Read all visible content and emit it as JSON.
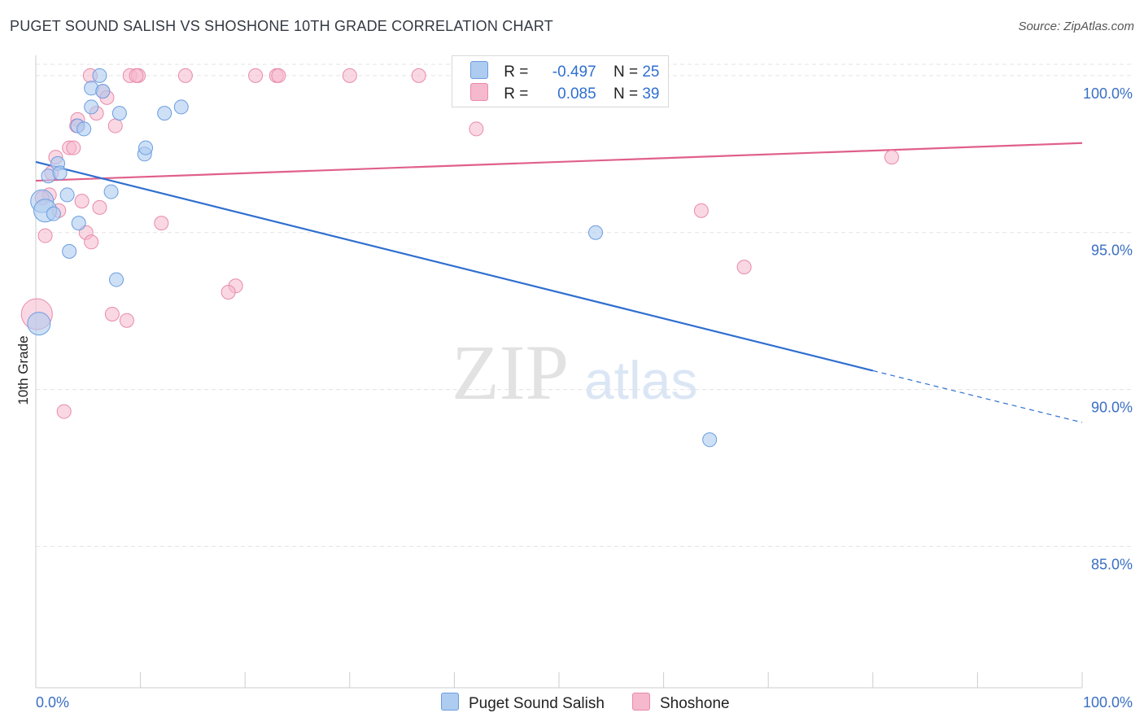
{
  "title": "PUGET SOUND SALISH VS SHOSHONE 10TH GRADE CORRELATION CHART",
  "source": "Source: ZipAtlas.com",
  "watermark": {
    "zip": "ZIP",
    "atlas": "atlas"
  },
  "colors": {
    "blue_fill": "#aecbf0",
    "blue_stroke": "#6a9de0",
    "blue_line": "#2f6fd0",
    "pink_fill": "#f5b8cc",
    "pink_stroke": "#e88aaa",
    "pink_line": "#e0608a",
    "grid": "#e3e3e3",
    "tick_label": "#3a6fc4"
  },
  "legend": {
    "rows": [
      {
        "series": "Puget Sound Salish",
        "r_label": "R =",
        "r_value": "-0.497",
        "n_label": "N =",
        "n_value": "25"
      },
      {
        "series": "Shoshone",
        "r_label": "R =",
        "r_value": "0.085",
        "n_label": "N =",
        "n_value": "39"
      }
    ]
  },
  "chart_data": {
    "type": "scatter",
    "title": "PUGET SOUND SALISH VS SHOSHONE 10TH GRADE CORRELATION CHART",
    "xlabel": "",
    "ylabel": "10th Grade",
    "xlim": [
      0,
      100
    ],
    "ylim": [
      80.5,
      100.8
    ],
    "x_tick_labels": [
      "0.0%",
      "100.0%"
    ],
    "y_ticks": [
      85,
      90,
      95,
      100
    ],
    "y_tick_labels": [
      "85.0%",
      "90.0%",
      "95.0%",
      "100.0%"
    ],
    "legend_position": "bottom-center",
    "series": [
      {
        "name": "Puget Sound Salish",
        "color": "#aecbf0",
        "points": [
          {
            "x": 6.1,
            "y": 100.0
          },
          {
            "x": 5.3,
            "y": 99.6
          },
          {
            "x": 6.4,
            "y": 99.5
          },
          {
            "x": 5.3,
            "y": 99.0
          },
          {
            "x": 8.0,
            "y": 98.8
          },
          {
            "x": 13.9,
            "y": 99.0
          },
          {
            "x": 4.0,
            "y": 98.4
          },
          {
            "x": 4.6,
            "y": 98.3
          },
          {
            "x": 10.4,
            "y": 97.5
          },
          {
            "x": 10.5,
            "y": 97.7
          },
          {
            "x": 2.1,
            "y": 97.2
          },
          {
            "x": 1.2,
            "y": 96.8
          },
          {
            "x": 2.3,
            "y": 96.9
          },
          {
            "x": 3.0,
            "y": 96.2
          },
          {
            "x": 7.2,
            "y": 96.3
          },
          {
            "x": 0.6,
            "y": 96.0
          },
          {
            "x": 0.9,
            "y": 95.7
          },
          {
            "x": 1.7,
            "y": 95.6
          },
          {
            "x": 4.1,
            "y": 95.3
          },
          {
            "x": 3.2,
            "y": 94.4
          },
          {
            "x": 7.7,
            "y": 93.5
          },
          {
            "x": 0.3,
            "y": 92.1
          },
          {
            "x": 53.5,
            "y": 95.0
          },
          {
            "x": 64.4,
            "y": 88.4
          },
          {
            "x": 12.3,
            "y": 98.8
          }
        ],
        "trend": {
          "x": [
            0,
            80
          ],
          "y": [
            97.25,
            90.6
          ],
          "dashed_extension": {
            "x": [
              80,
              100
            ],
            "y": [
              90.6,
              88.95
            ]
          }
        }
      },
      {
        "name": "Shoshone",
        "color": "#f5b8cc",
        "points": [
          {
            "x": 5.2,
            "y": 100.0
          },
          {
            "x": 9.0,
            "y": 100.0
          },
          {
            "x": 9.8,
            "y": 100.0
          },
          {
            "x": 14.3,
            "y": 100.0
          },
          {
            "x": 21.0,
            "y": 100.0
          },
          {
            "x": 23.0,
            "y": 100.0
          },
          {
            "x": 23.2,
            "y": 100.0
          },
          {
            "x": 30.0,
            "y": 100.0
          },
          {
            "x": 36.6,
            "y": 100.0
          },
          {
            "x": 6.4,
            "y": 99.5
          },
          {
            "x": 6.8,
            "y": 99.3
          },
          {
            "x": 5.8,
            "y": 98.8
          },
          {
            "x": 4.0,
            "y": 98.6
          },
          {
            "x": 3.9,
            "y": 98.4
          },
          {
            "x": 7.6,
            "y": 98.4
          },
          {
            "x": 42.1,
            "y": 98.3
          },
          {
            "x": 3.2,
            "y": 97.7
          },
          {
            "x": 3.6,
            "y": 97.7
          },
          {
            "x": 1.9,
            "y": 97.4
          },
          {
            "x": 81.8,
            "y": 97.4
          },
          {
            "x": 1.5,
            "y": 96.9
          },
          {
            "x": 1.3,
            "y": 96.2
          },
          {
            "x": 0.6,
            "y": 96.1
          },
          {
            "x": 4.4,
            "y": 96.0
          },
          {
            "x": 6.1,
            "y": 95.8
          },
          {
            "x": 2.2,
            "y": 95.7
          },
          {
            "x": 63.6,
            "y": 95.7
          },
          {
            "x": 12.0,
            "y": 95.3
          },
          {
            "x": 4.8,
            "y": 95.0
          },
          {
            "x": 0.9,
            "y": 94.9
          },
          {
            "x": 5.3,
            "y": 94.7
          },
          {
            "x": 67.7,
            "y": 93.9
          },
          {
            "x": 19.1,
            "y": 93.3
          },
          {
            "x": 18.4,
            "y": 93.1
          },
          {
            "x": 7.3,
            "y": 92.4
          },
          {
            "x": 8.7,
            "y": 92.2
          },
          {
            "x": 0.1,
            "y": 92.4,
            "big": true
          },
          {
            "x": 2.7,
            "y": 89.3
          },
          {
            "x": 9.6,
            "y": 100.0
          }
        ],
        "trend": {
          "x": [
            0,
            100
          ],
          "y": [
            96.65,
            97.85
          ]
        }
      }
    ]
  }
}
